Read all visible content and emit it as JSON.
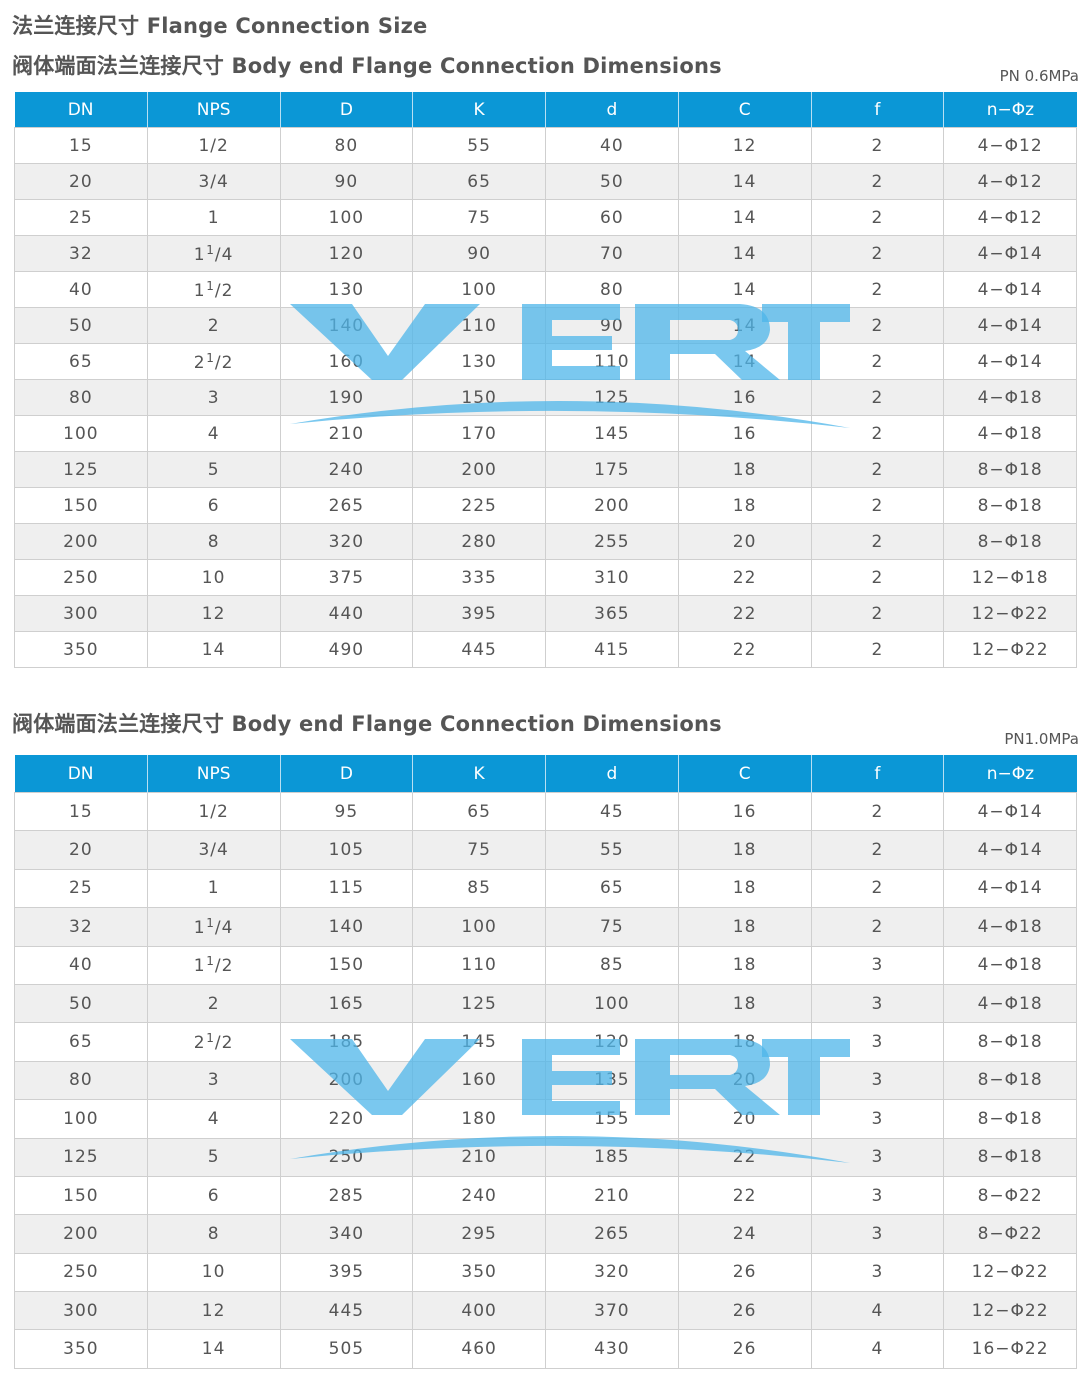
{
  "title": "法兰连接尺寸 Flange Connection Size",
  "columns": [
    "DN",
    "NPS",
    "D",
    "K",
    "d",
    "C",
    "f",
    "n−Φz"
  ],
  "watermark": {
    "text": "VERT",
    "color": "#4db6ea"
  },
  "colors": {
    "header": "#0b97d6",
    "alt_row": "#efefef"
  },
  "tables": [
    {
      "subtitle": "阀体端面法兰连接尺寸 Body end Flange Connection Dimensions",
      "pressure": "PN 0.6MPa",
      "rows": [
        [
          "15",
          "1/2",
          "80",
          "55",
          "40",
          "12",
          "2",
          "4−Φ12"
        ],
        [
          "20",
          "3/4",
          "90",
          "65",
          "50",
          "14",
          "2",
          "4−Φ12"
        ],
        [
          "25",
          "1",
          "100",
          "75",
          "60",
          "14",
          "2",
          "4−Φ12"
        ],
        [
          "32",
          "1 1/4",
          "120",
          "90",
          "70",
          "14",
          "2",
          "4−Φ14"
        ],
        [
          "40",
          "1 1/2",
          "130",
          "100",
          "80",
          "14",
          "2",
          "4−Φ14"
        ],
        [
          "50",
          "2",
          "140",
          "110",
          "90",
          "14",
          "2",
          "4−Φ14"
        ],
        [
          "65",
          "2 1/2",
          "160",
          "130",
          "110",
          "14",
          "2",
          "4−Φ14"
        ],
        [
          "80",
          "3",
          "190",
          "150",
          "125",
          "16",
          "2",
          "4−Φ18"
        ],
        [
          "100",
          "4",
          "210",
          "170",
          "145",
          "16",
          "2",
          "4−Φ18"
        ],
        [
          "125",
          "5",
          "240",
          "200",
          "175",
          "18",
          "2",
          "8−Φ18"
        ],
        [
          "150",
          "6",
          "265",
          "225",
          "200",
          "18",
          "2",
          "8−Φ18"
        ],
        [
          "200",
          "8",
          "320",
          "280",
          "255",
          "20",
          "2",
          "8−Φ18"
        ],
        [
          "250",
          "10",
          "375",
          "335",
          "310",
          "22",
          "2",
          "12−Φ18"
        ],
        [
          "300",
          "12",
          "440",
          "395",
          "365",
          "22",
          "2",
          "12−Φ22"
        ],
        [
          "350",
          "14",
          "490",
          "445",
          "415",
          "22",
          "2",
          "12−Φ22"
        ]
      ]
    },
    {
      "subtitle": "阀体端面法兰连接尺寸 Body end Flange Connection Dimensions",
      "pressure": "PN1.0MPa",
      "rows": [
        [
          "15",
          "1/2",
          "95",
          "65",
          "45",
          "16",
          "2",
          "4−Φ14"
        ],
        [
          "20",
          "3/4",
          "105",
          "75",
          "55",
          "18",
          "2",
          "4−Φ14"
        ],
        [
          "25",
          "1",
          "115",
          "85",
          "65",
          "18",
          "2",
          "4−Φ14"
        ],
        [
          "32",
          "1 1/4",
          "140",
          "100",
          "75",
          "18",
          "2",
          "4−Φ18"
        ],
        [
          "40",
          "1 1/2",
          "150",
          "110",
          "85",
          "18",
          "3",
          "4−Φ18"
        ],
        [
          "50",
          "2",
          "165",
          "125",
          "100",
          "18",
          "3",
          "4−Φ18"
        ],
        [
          "65",
          "2 1/2",
          "185",
          "145",
          "120",
          "18",
          "3",
          "8−Φ18"
        ],
        [
          "80",
          "3",
          "200",
          "160",
          "135",
          "20",
          "3",
          "8−Φ18"
        ],
        [
          "100",
          "4",
          "220",
          "180",
          "155",
          "20",
          "3",
          "8−Φ18"
        ],
        [
          "125",
          "5",
          "250",
          "210",
          "185",
          "22",
          "3",
          "8−Φ18"
        ],
        [
          "150",
          "6",
          "285",
          "240",
          "210",
          "22",
          "3",
          "8−Φ22"
        ],
        [
          "200",
          "8",
          "340",
          "295",
          "265",
          "24",
          "3",
          "8−Φ22"
        ],
        [
          "250",
          "10",
          "395",
          "350",
          "320",
          "26",
          "3",
          "12−Φ22"
        ],
        [
          "300",
          "12",
          "445",
          "400",
          "370",
          "26",
          "4",
          "12−Φ22"
        ],
        [
          "350",
          "14",
          "505",
          "460",
          "430",
          "26",
          "4",
          "16−Φ22"
        ]
      ]
    }
  ]
}
